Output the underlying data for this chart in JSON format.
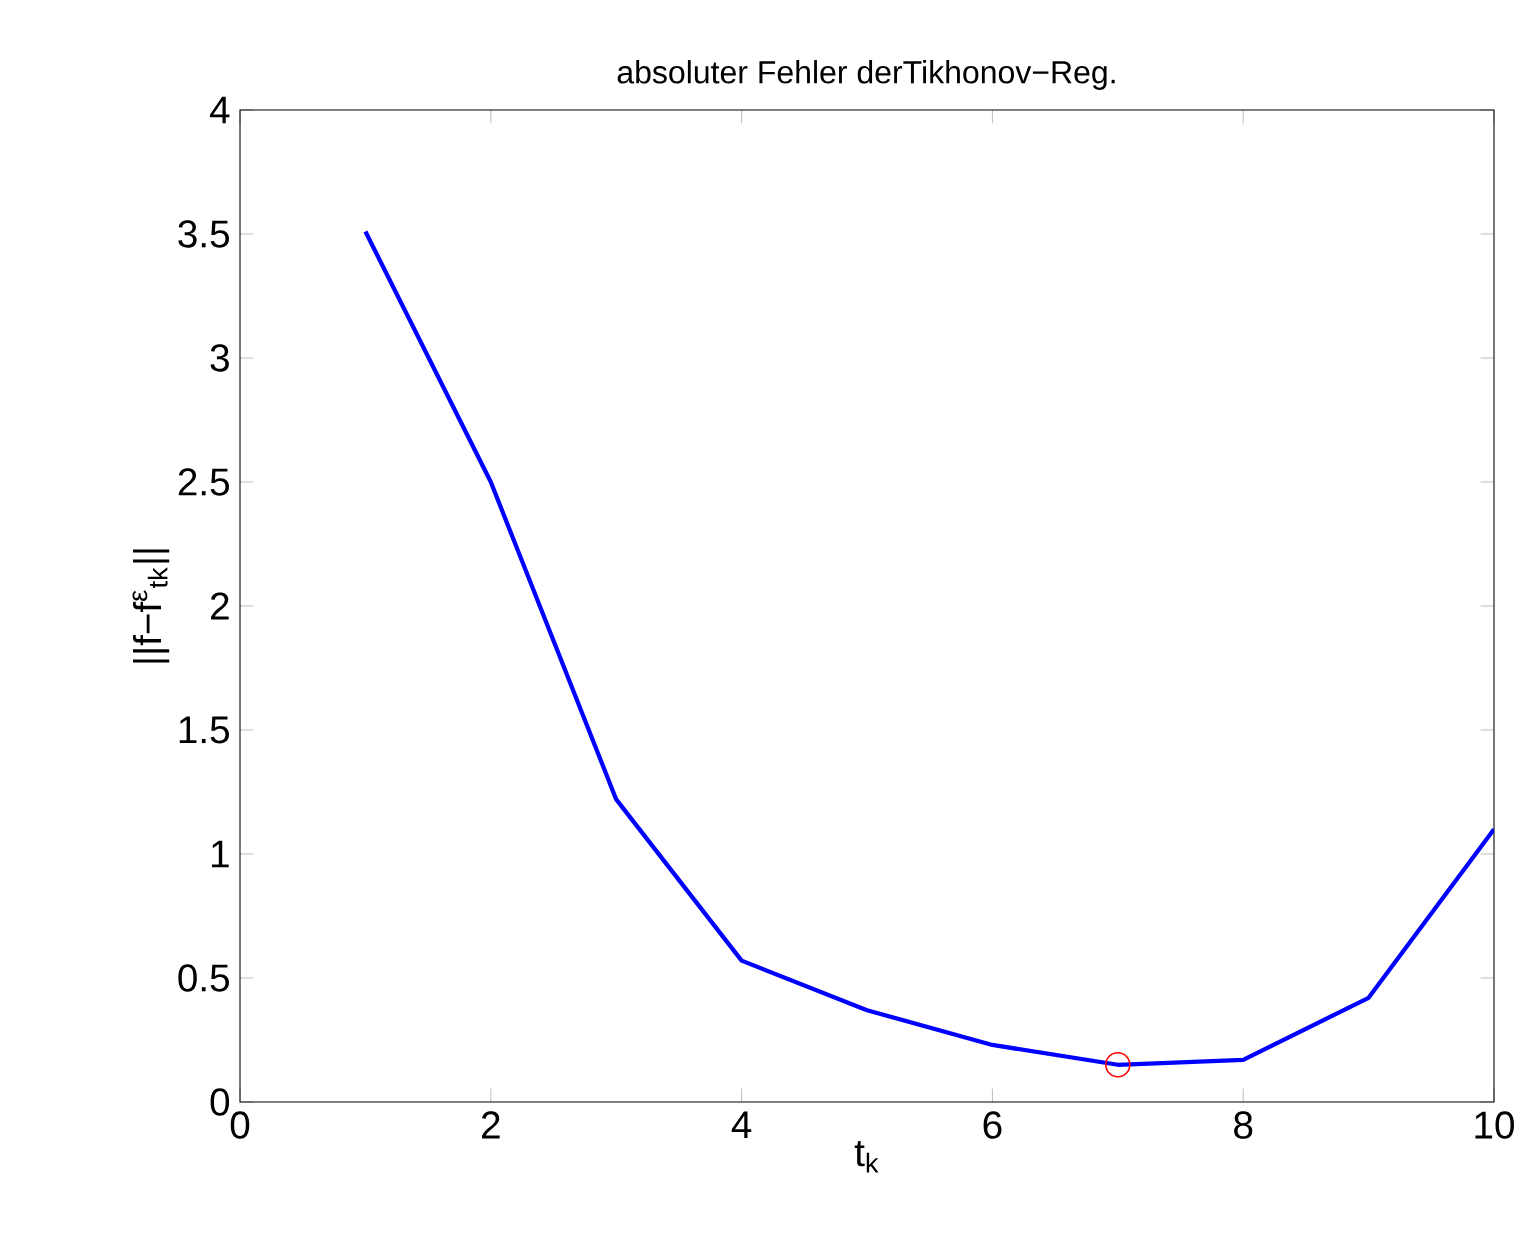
{
  "chart_data": {
    "type": "line",
    "title": "absoluter Fehler derTikhonov−Reg.",
    "xlabel": "t$_{k}$",
    "ylabel": "||f−f$^{ε}$$_{tk}$||",
    "xlim": [
      0,
      10
    ],
    "ylim": [
      0,
      4
    ],
    "xticks": [
      0,
      2,
      4,
      6,
      8,
      10
    ],
    "yticks": [
      0,
      0.5,
      1,
      1.5,
      2,
      2.5,
      3,
      3.5,
      4
    ],
    "grid": false,
    "series": [
      {
        "color": "#0000ff",
        "marker": "none",
        "x": [
          1,
          2,
          3,
          4,
          5,
          6,
          7,
          8,
          9,
          10
        ],
        "values": [
          3.51,
          2.5,
          1.22,
          0.57,
          0.37,
          0.23,
          0.15,
          0.17,
          0.42,
          1.1
        ]
      },
      {
        "type": "scatter",
        "color": "#ff0000",
        "marker": "circle",
        "x": [
          7
        ],
        "values": [
          0.15
        ]
      }
    ]
  }
}
